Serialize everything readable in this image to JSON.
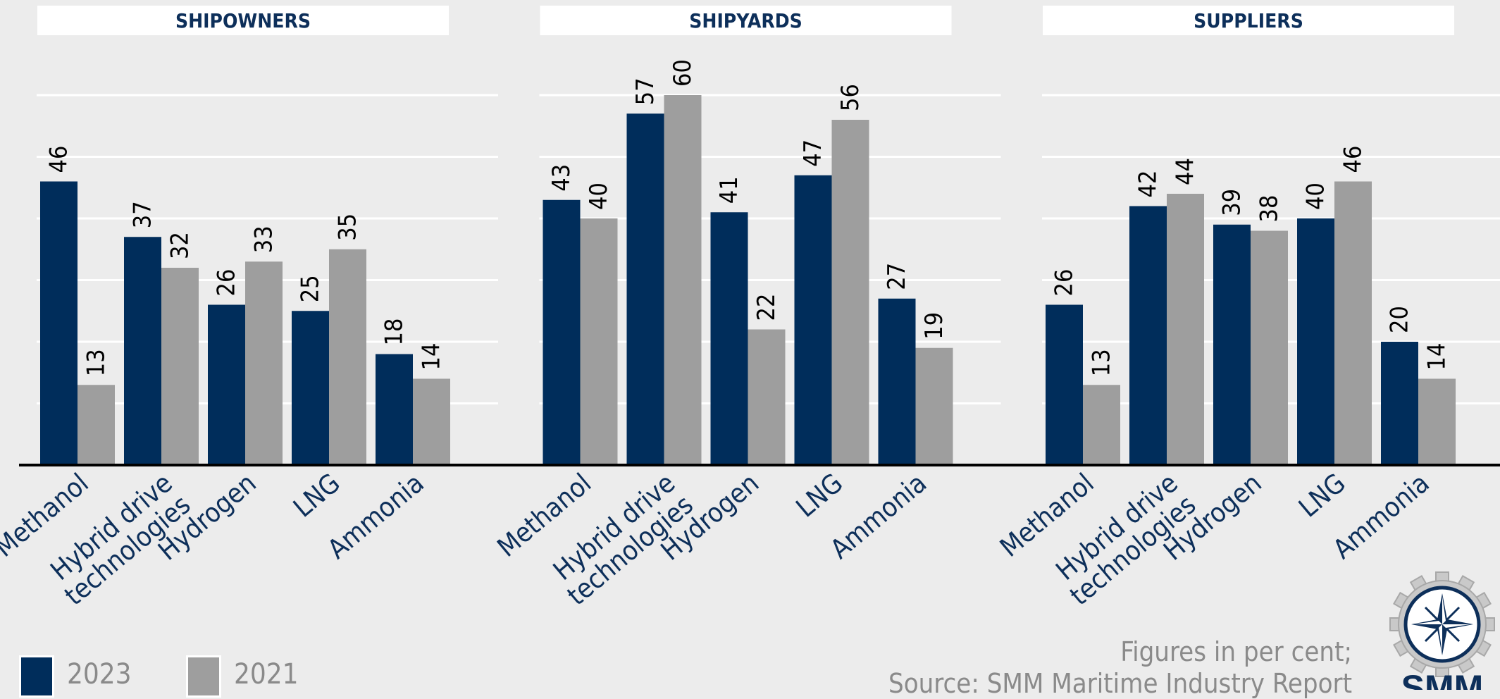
{
  "colors": {
    "y2023": "#002d5b",
    "y2021": "#9e9e9e",
    "title_text": "#0d2f5a",
    "label_text": "#0d2f5a",
    "value_text": "#000000",
    "background": "#ececec",
    "grid": "#ffffff",
    "axis": "#000000"
  },
  "chart_data": [
    {
      "type": "bar",
      "title": "SHIPOWNERS",
      "categories": [
        "Methanol",
        "Hybrid drive technologies",
        "Hydrogen",
        "LNG",
        "Ammonia"
      ],
      "series": [
        {
          "name": "2023",
          "values": [
            46,
            37,
            26,
            25,
            18
          ]
        },
        {
          "name": "2021",
          "values": [
            13,
            32,
            33,
            35,
            14
          ]
        }
      ],
      "ylim": [
        0,
        65
      ],
      "grid": true
    },
    {
      "type": "bar",
      "title": "SHIPYARDS",
      "categories": [
        "Methanol",
        "Hybrid drive technologies",
        "Hydrogen",
        "LNG",
        "Ammonia"
      ],
      "series": [
        {
          "name": "2023",
          "values": [
            43,
            57,
            41,
            47,
            27
          ]
        },
        {
          "name": "2021",
          "values": [
            40,
            60,
            22,
            56,
            19
          ]
        }
      ],
      "ylim": [
        0,
        65
      ],
      "grid": true
    },
    {
      "type": "bar",
      "title": "SUPPLIERS",
      "categories": [
        "Methanol",
        "Hybrid drive technologies",
        "Hydrogen",
        "LNG",
        "Ammonia"
      ],
      "series": [
        {
          "name": "2023",
          "values": [
            26,
            42,
            39,
            40,
            20
          ]
        },
        {
          "name": "2021",
          "values": [
            13,
            44,
            38,
            46,
            14
          ]
        }
      ],
      "ylim": [
        0,
        65
      ],
      "grid": true
    }
  ],
  "category_lines": {
    "Methanol": [
      "Methanol"
    ],
    "Hybrid drive technologies": [
      "Hybrid drive",
      "technologies"
    ],
    "Hydrogen": [
      "Hydrogen"
    ],
    "LNG": [
      "LNG"
    ],
    "Ammonia": [
      "Ammonia"
    ]
  },
  "legend": [
    {
      "label": "2023",
      "color": "#002d5b"
    },
    {
      "label": "2021",
      "color": "#9e9e9e"
    }
  ],
  "source": {
    "line1": "Figures in per cent;",
    "line2": "Source: SMM Maritime Industry Report"
  },
  "logo": {
    "text": "SMM",
    "icon": "compass-gear-icon"
  }
}
